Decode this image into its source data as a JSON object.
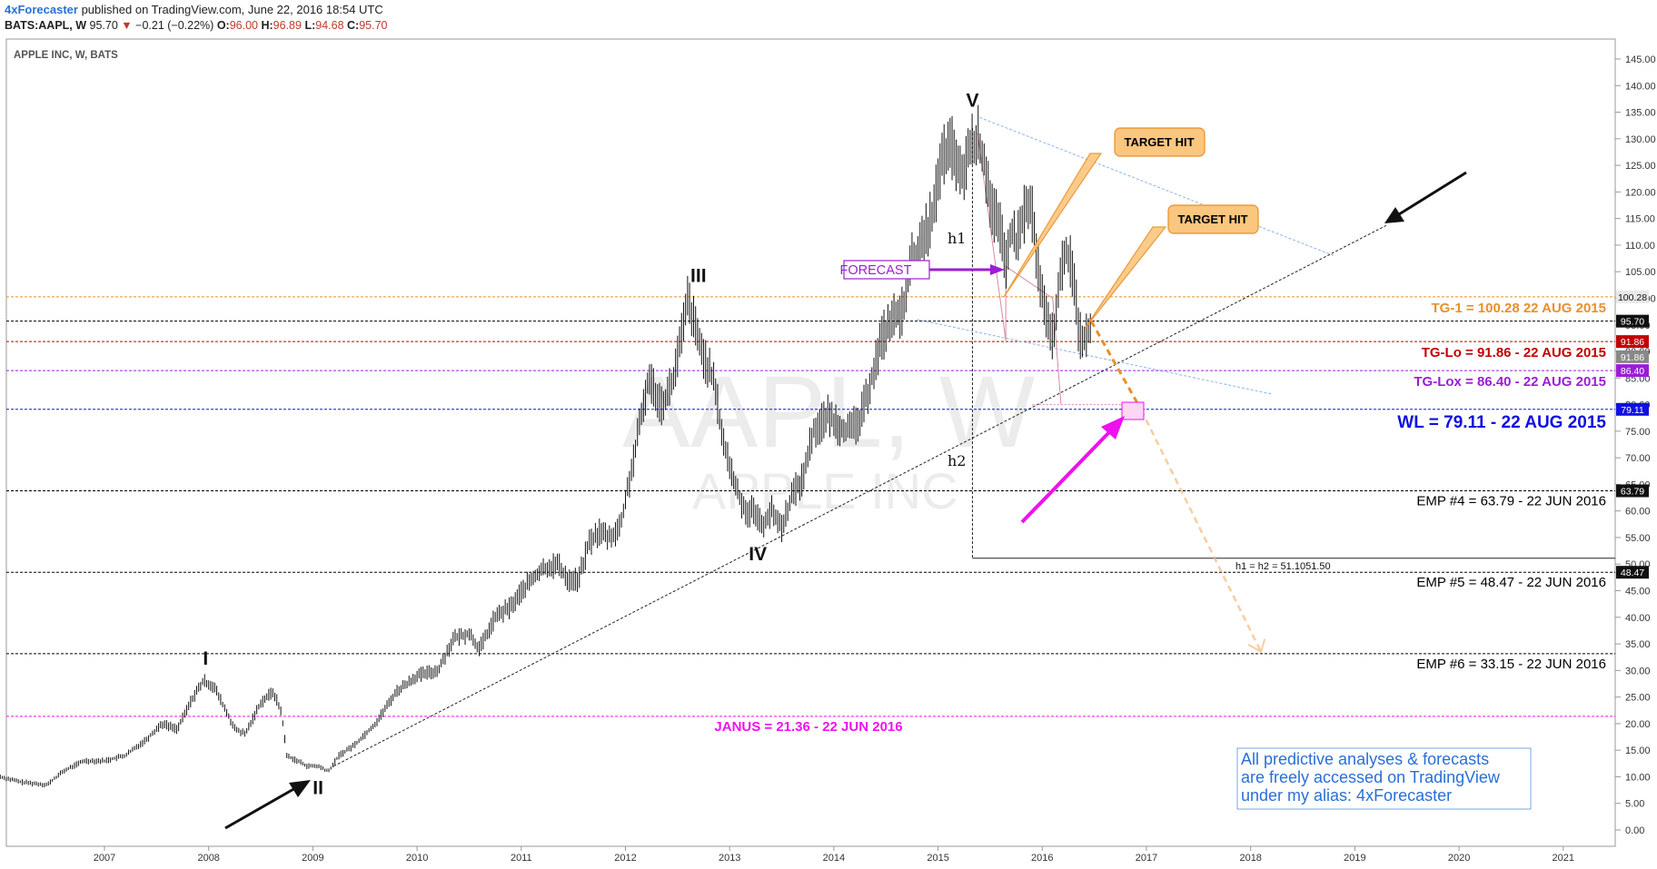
{
  "header": {
    "author": "4xForecaster",
    "published": " published on TradingView.com, June 22, 2016 18:54 UTC"
  },
  "quote": {
    "symbol": "BATS:AAPL, W",
    "last": "95.70",
    "change": "−0.21 (−0.22%)",
    "o_label": "O:",
    "o": "96.00",
    "h_label": "H:",
    "h": "96.89",
    "l_label": "L:",
    "l": "94.68",
    "c_label": "C:",
    "c": "95.70"
  },
  "chart_title": "APPLE INC, W, BATS",
  "watermark": {
    "symbol": "AAPL, W",
    "name": "APPLE INC"
  },
  "colors": {
    "accent_orange": "#e8902a",
    "tg_lo_red": "#c00000",
    "tg_lox_purple": "#9b1dd6",
    "wl_blue": "#1010e0",
    "janus_magenta": "#ee11ee",
    "note_blue": "#2a6fd6",
    "bars": "#111111"
  },
  "chart_data": {
    "type": "line",
    "title": "APPLE INC, W, BATS",
    "x_ticks": [
      "2007",
      "2008",
      "2009",
      "2010",
      "2011",
      "2012",
      "2013",
      "2014",
      "2015",
      "2016",
      "2017",
      "2018",
      "2019",
      "2020",
      "2021"
    ],
    "y_ticks": [
      "0.00",
      "5.00",
      "10.00",
      "15.00",
      "20.00",
      "25.00",
      "30.00",
      "35.00",
      "40.00",
      "45.00",
      "50.00",
      "55.00",
      "60.00",
      "65.00",
      "70.00",
      "75.00",
      "80.00",
      "85.00",
      "90.00",
      "95.00",
      "100.00",
      "105.00",
      "110.00",
      "115.00",
      "120.00",
      "125.00",
      "130.00",
      "135.00",
      "140.00",
      "145.00"
    ],
    "ylim": [
      -1,
      148
    ],
    "xlim": [
      2006.0,
      2021.95
    ],
    "series": [
      {
        "values_x": [
          2006.0,
          2006.2,
          2006.45,
          2006.6,
          2006.8,
          2007.0,
          2007.2,
          2007.4,
          2007.55,
          2007.7,
          2007.85,
          2007.95,
          2008.05,
          2008.15,
          2008.25,
          2008.35,
          2008.5,
          2008.62,
          2008.7,
          2008.75,
          2008.85,
          2008.95,
          2009.05,
          2009.15,
          2009.25,
          2009.4,
          2009.6,
          2009.8,
          2010.0,
          2010.2,
          2010.35,
          2010.5,
          2010.6,
          2010.75,
          2010.9,
          2011.05,
          2011.2,
          2011.35,
          2011.45,
          2011.55,
          2011.65,
          2011.75,
          2011.85,
          2011.95,
          2012.1,
          2012.22,
          2012.35,
          2012.45,
          2012.55,
          2012.6,
          2012.7,
          2012.85,
          2012.95,
          2013.05,
          2013.15,
          2013.25,
          2013.3,
          2013.4,
          2013.5,
          2013.6,
          2013.7,
          2013.8,
          2013.95,
          2014.05,
          2014.15,
          2014.25,
          2014.35,
          2014.45,
          2014.55,
          2014.65,
          2014.75,
          2014.85,
          2014.95,
          2015.05,
          2015.15,
          2015.22,
          2015.3,
          2015.38,
          2015.45,
          2015.52,
          2015.6,
          2015.65,
          2015.7,
          2015.75,
          2015.82,
          2015.9,
          2015.95,
          2016.0,
          2016.05,
          2016.1,
          2016.15,
          2016.22,
          2016.3,
          2016.35,
          2016.4,
          2016.47
        ],
        "values_y": [
          10,
          9,
          8.5,
          11,
          13,
          13,
          14,
          17,
          20,
          19,
          25,
          28,
          27,
          23,
          19,
          18,
          24,
          26,
          22,
          14,
          13,
          12,
          12,
          11,
          14,
          16,
          20,
          26,
          29,
          30,
          36,
          37,
          34,
          40,
          42,
          46,
          49,
          50,
          47,
          47,
          54,
          56,
          55,
          57,
          72,
          85,
          80,
          84,
          94,
          100,
          92,
          84,
          72,
          65,
          60,
          60,
          57,
          60,
          57,
          63,
          66,
          75,
          78,
          76,
          75,
          77,
          84,
          92,
          96,
          97,
          107,
          110,
          116,
          127,
          128,
          122,
          128,
          130,
          125,
          117,
          112,
          106,
          113,
          110,
          116,
          117,
          107,
          100,
          95,
          93,
          100,
          110,
          104,
          94,
          92,
          95.7
        ]
      }
    ],
    "levels": [
      {
        "label": "TG-1 = 100.28 22 AUG 2015",
        "value": 100.28,
        "tag": "100.28",
        "color": "#e8902a"
      },
      {
        "label": "",
        "value": 95.7,
        "tag": "95.70",
        "color": "#000000"
      },
      {
        "label": "TG-Lo = 91.86 - 22 AUG 2015",
        "value": 91.86,
        "tag": "91.86",
        "color": "#c00000"
      },
      {
        "label": "TG-Lox = 86.40 - 22 AUG 2015",
        "value": 86.4,
        "tag": "86.40",
        "color": "#9b1dd6"
      },
      {
        "label": "WL = 79.11 - 22 AUG 2015",
        "value": 79.11,
        "tag": "79.11",
        "color": "#1010e0"
      },
      {
        "label": "EMP #4 = 63.79 - 22 JUN 2016",
        "value": 63.79,
        "tag": "63.79",
        "color": "#000000"
      },
      {
        "label": "EMP #5 = 48.47 - 22 JUN 2016",
        "value": 48.47,
        "tag": "48.47",
        "color": "#000000"
      },
      {
        "label": "EMP #6 = 33.15 - 22 JUN 2016",
        "value": 33.15,
        "tag": "",
        "color": "#000000"
      },
      {
        "label": "JANUS = 21.36 - 22 JUN 2016",
        "value": 21.36,
        "tag": "",
        "color": "#ee11ee"
      }
    ],
    "extra_tags": [
      {
        "value": 89.0,
        "tag": "91.86"
      }
    ],
    "waves": [
      {
        "label": "I",
        "x": 2007.97,
        "y": 29
      },
      {
        "label": "II",
        "x": 2009.05,
        "y": 11
      },
      {
        "label": "III",
        "x": 2012.7,
        "y": 101
      },
      {
        "label": "IV",
        "x": 2013.27,
        "y": 55
      },
      {
        "label": "V",
        "x": 2015.33,
        "y": 134
      }
    ],
    "annotations": {
      "h1": "h1",
      "h2": "h2",
      "h_eq": "h1 = h2 = 51.1051.50",
      "forecast": "FORECAST",
      "target_hit_1": "TARGET HIT",
      "target_hit_2": "TARGET HIT"
    }
  },
  "note": {
    "line1": "All predictive analyses & forecasts",
    "line2": "are freely accessed on TradingView",
    "line3": "under my alias: 4xForecaster"
  }
}
